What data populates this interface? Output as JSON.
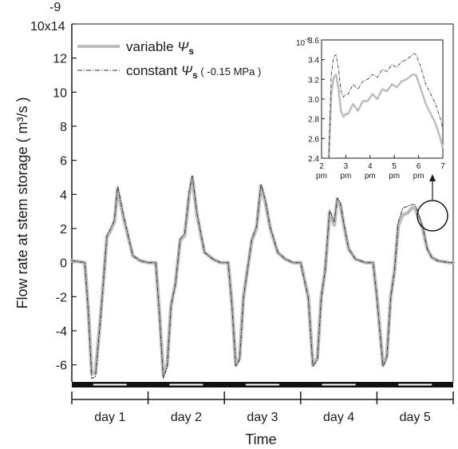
{
  "chart_data": [
    {
      "type": "line",
      "ylabel": "Flow rate at stem storage  ( m³/s )",
      "xlabel": "Time",
      "y_scale_label": "-9",
      "y_top_tick": "10x14",
      "yticks": [
        "-6",
        "-4",
        "-2",
        "0",
        "2",
        "4",
        "6",
        "8",
        "10",
        "12"
      ],
      "ylim": [
        -7,
        14
      ],
      "xlim": [
        0,
        5
      ],
      "categories": [
        "day 1",
        "day 2",
        "day 3",
        "day 4",
        "day 5"
      ],
      "legend": {
        "placement": "top-left",
        "entries": [
          {
            "label_prefix": "variable ",
            "symbol": "Ψ",
            "subscript": "s",
            "suffix": "",
            "color": "#bdbdbd",
            "style": "solid"
          },
          {
            "label_prefix": "constant ",
            "symbol": "Ψ",
            "subscript": "s",
            "suffix": " ( -0.15 MPa )",
            "color": "#333333",
            "style": "dash-dot"
          }
        ]
      },
      "series": [
        {
          "name": "variable Ψs",
          "color": "#bdbdbd",
          "x": [
            0,
            0.1,
            0.17,
            0.22,
            0.26,
            0.31,
            0.38,
            0.46,
            0.5,
            0.56,
            0.6,
            0.68,
            0.8,
            0.9,
            1.0,
            1.1,
            1.15,
            1.2,
            1.25,
            1.3,
            1.36,
            1.42,
            1.48,
            1.54,
            1.58,
            1.64,
            1.74,
            1.85,
            1.95,
            2.05,
            2.1,
            2.15,
            2.2,
            2.25,
            2.3,
            2.36,
            2.42,
            2.48,
            2.54,
            2.6,
            2.7,
            2.8,
            2.9,
            3.0,
            3.1,
            3.16,
            3.22,
            3.27,
            3.32,
            3.38,
            3.44,
            3.48,
            3.52,
            3.57,
            3.63,
            3.72,
            3.85,
            3.95,
            4.0,
            4.08,
            4.13,
            4.18,
            4.23,
            4.28,
            4.34,
            4.4,
            4.46,
            4.5,
            4.55,
            4.6,
            4.66,
            4.72,
            4.8,
            4.88,
            4.95,
            5.0
          ],
          "y": [
            0.1,
            0.05,
            0.0,
            -3.0,
            -6.5,
            -6.5,
            -3.0,
            1.5,
            1.8,
            2.4,
            4.3,
            2.6,
            0.4,
            0.1,
            0.0,
            0.0,
            -3.0,
            -6.6,
            -6.0,
            -2.5,
            -1.2,
            1.3,
            1.6,
            4.0,
            5.0,
            2.8,
            0.6,
            0.2,
            0.0,
            0.0,
            -2.5,
            -6.0,
            -5.6,
            -2.0,
            -0.5,
            1.3,
            2.0,
            4.5,
            3.5,
            2.0,
            0.6,
            0.2,
            0.0,
            0.0,
            -2.0,
            -6.0,
            -5.6,
            -2.0,
            -0.5,
            2.9,
            2.2,
            3.7,
            3.4,
            2.1,
            0.8,
            0.2,
            0.0,
            0.0,
            -2.0,
            -6.0,
            -5.5,
            -2.0,
            -0.5,
            2.2,
            2.8,
            2.9,
            3.2,
            3.2,
            2.6,
            2.0,
            0.8,
            0.3,
            0.1,
            0.05,
            0.0,
            0.0
          ]
        },
        {
          "name": "constant Ψs ( -0.15 MPa )",
          "color": "#333333",
          "x": [
            0,
            0.1,
            0.17,
            0.22,
            0.26,
            0.31,
            0.38,
            0.46,
            0.5,
            0.56,
            0.6,
            0.68,
            0.8,
            0.9,
            1.0,
            1.1,
            1.15,
            1.2,
            1.25,
            1.3,
            1.36,
            1.42,
            1.48,
            1.54,
            1.58,
            1.64,
            1.74,
            1.85,
            1.95,
            2.05,
            2.1,
            2.15,
            2.2,
            2.25,
            2.3,
            2.36,
            2.42,
            2.48,
            2.54,
            2.6,
            2.7,
            2.8,
            2.9,
            3.0,
            3.1,
            3.16,
            3.22,
            3.27,
            3.32,
            3.38,
            3.44,
            3.48,
            3.52,
            3.57,
            3.63,
            3.72,
            3.85,
            3.95,
            4.0,
            4.08,
            4.13,
            4.18,
            4.23,
            4.28,
            4.34,
            4.4,
            4.46,
            4.5,
            4.55,
            4.6,
            4.66,
            4.72,
            4.8,
            4.88,
            4.95,
            5.0
          ],
          "y": [
            0.1,
            0.05,
            0.0,
            -3.1,
            -6.8,
            -6.7,
            -3.1,
            1.6,
            1.9,
            2.5,
            4.5,
            2.7,
            0.4,
            0.1,
            0.0,
            0.0,
            -3.1,
            -6.8,
            -6.1,
            -2.6,
            -1.2,
            1.4,
            1.7,
            4.2,
            5.1,
            2.9,
            0.6,
            0.2,
            0.0,
            0.0,
            -2.6,
            -6.1,
            -5.7,
            -2.1,
            -0.5,
            1.4,
            2.1,
            4.6,
            3.6,
            2.1,
            0.6,
            0.2,
            0.0,
            0.0,
            -2.1,
            -6.1,
            -5.7,
            -2.1,
            -0.5,
            3.1,
            2.4,
            3.8,
            3.5,
            2.2,
            0.8,
            0.2,
            0.0,
            0.0,
            -2.1,
            -6.1,
            -5.6,
            -2.1,
            -0.5,
            2.4,
            3.2,
            3.3,
            3.4,
            3.4,
            2.8,
            2.1,
            0.8,
            0.3,
            0.1,
            0.05,
            0.0,
            0.0
          ]
        }
      ],
      "annotations": [
        "day-night bar along bottom axis",
        "circle around day 5 peak with arrow to inset"
      ]
    },
    {
      "type": "line",
      "inset": true,
      "y_scale_label": "10",
      "y_scale_exp": "-9",
      "yticks": [
        "2.4",
        "2.6",
        "2.8",
        "3.0",
        "3.2",
        "3.4",
        "3.6"
      ],
      "ylim": [
        2.4,
        3.6
      ],
      "xticks": [
        "2",
        "3",
        "4",
        "5",
        "6",
        "7"
      ],
      "xtick_sub": "pm",
      "xlim": [
        2,
        7
      ],
      "series": [
        {
          "name": "variable Ψs",
          "color": "#bdbdbd",
          "x": [
            2.3,
            2.4,
            2.5,
            2.6,
            2.7,
            2.8,
            2.9,
            3.0,
            3.1,
            3.3,
            3.5,
            3.7,
            3.9,
            4.1,
            4.3,
            4.5,
            4.7,
            4.9,
            5.1,
            5.3,
            5.5,
            5.7,
            5.8,
            5.9,
            6.1,
            6.3,
            6.5,
            6.7,
            6.9,
            7.0
          ],
          "y": [
            2.4,
            3.05,
            3.22,
            3.25,
            3.1,
            2.88,
            2.82,
            2.85,
            2.85,
            2.95,
            2.88,
            2.98,
            2.98,
            3.05,
            3.0,
            3.1,
            3.08,
            3.15,
            3.12,
            3.18,
            3.2,
            3.24,
            3.25,
            3.24,
            3.1,
            2.95,
            2.85,
            2.75,
            2.6,
            2.5
          ]
        },
        {
          "name": "constant Ψs ( -0.15 MPa )",
          "color": "#333333",
          "x": [
            2.3,
            2.4,
            2.5,
            2.6,
            2.7,
            2.8,
            2.9,
            3.0,
            3.1,
            3.3,
            3.5,
            3.7,
            3.9,
            4.1,
            4.3,
            4.5,
            4.7,
            4.9,
            5.1,
            5.3,
            5.5,
            5.7,
            5.8,
            5.9,
            6.1,
            6.3,
            6.5,
            6.7,
            6.9,
            7.0
          ],
          "y": [
            2.4,
            3.25,
            3.43,
            3.45,
            3.3,
            3.08,
            3.02,
            3.05,
            3.05,
            3.15,
            3.1,
            3.18,
            3.2,
            3.25,
            3.22,
            3.3,
            3.28,
            3.35,
            3.32,
            3.38,
            3.4,
            3.44,
            3.46,
            3.45,
            3.32,
            3.15,
            3.05,
            2.95,
            2.8,
            2.7
          ]
        }
      ]
    }
  ]
}
